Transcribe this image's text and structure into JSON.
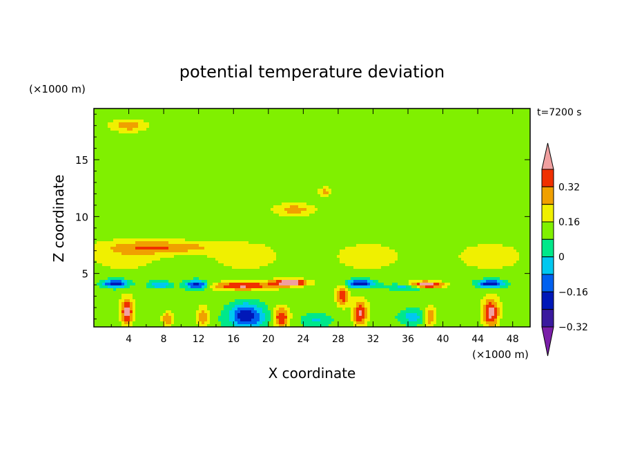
{
  "chart_data": {
    "type": "heatmap",
    "title": "potential temperature deviation",
    "xlabel": "X coordinate",
    "ylabel": "Z coordinate",
    "x_unit": "(×1000 m)",
    "y_unit": "(×1000 m)",
    "time_label": "t=7200 s",
    "xlim": [
      0,
      50
    ],
    "ylim": [
      0.3,
      19.5
    ],
    "x_ticks": [
      "4",
      "8",
      "12",
      "16",
      "20",
      "24",
      "28",
      "32",
      "36",
      "40",
      "44",
      "48"
    ],
    "y_ticks": [
      "5",
      "10",
      "15"
    ],
    "colorbar": {
      "levels": [
        -0.4,
        -0.32,
        -0.24,
        -0.16,
        -0.08,
        0,
        0.08,
        0.16,
        0.24,
        0.32,
        0.4
      ],
      "tick_labels": [
        "0.32",
        "0.16",
        "0",
        "−0.16",
        "−0.32"
      ],
      "colors": [
        "#7a1fa8",
        "#3a1a9e",
        "#0018b8",
        "#0060f0",
        "#00c8f0",
        "#00e88a",
        "#80f000",
        "#f0f000",
        "#f0a000",
        "#f03000",
        "#f0a0a0"
      ],
      "extend": "both"
    },
    "field": {
      "background": 0.02,
      "features": [
        {
          "type": "band",
          "z": 2.5,
          "value": 0.03
        },
        {
          "type": "band",
          "z": 6.5,
          "value": 0.1
        },
        {
          "type": "blob",
          "x": 4,
          "z": 18,
          "w": 2.2,
          "h": 0.6,
          "value": 0.19
        },
        {
          "type": "blob",
          "x": 23,
          "z": 10.6,
          "w": 2.5,
          "h": 0.6,
          "value": 0.18
        },
        {
          "type": "blob",
          "x": 26.5,
          "z": 12.2,
          "w": 0.8,
          "h": 0.4,
          "value": 0.17
        },
        {
          "type": "blob",
          "x": 8,
          "z": 7.3,
          "w": 6,
          "h": 0.6,
          "value": 0.2
        },
        {
          "type": "blob",
          "x": 2.5,
          "z": 4.1,
          "w": 1.4,
          "h": 0.35,
          "value": -0.36
        },
        {
          "type": "blob",
          "x": 11.8,
          "z": 4.0,
          "w": 1.3,
          "h": 0.35,
          "value": -0.36
        },
        {
          "type": "blob",
          "x": 30.5,
          "z": 4.1,
          "w": 1.6,
          "h": 0.35,
          "value": -0.36
        },
        {
          "type": "blob",
          "x": 45.5,
          "z": 4.1,
          "w": 1.5,
          "h": 0.35,
          "value": -0.36
        },
        {
          "type": "blob",
          "x": 7.5,
          "z": 4.0,
          "w": 1.2,
          "h": 0.3,
          "value": -0.2
        },
        {
          "type": "blob",
          "x": 36,
          "z": 3.8,
          "w": 2.0,
          "h": 0.3,
          "value": -0.2
        },
        {
          "type": "blob",
          "x": 17.5,
          "z": 1.3,
          "w": 2.0,
          "h": 1.1,
          "value": -0.34
        },
        {
          "type": "blob",
          "x": 22.5,
          "z": 4.2,
          "w": 2.0,
          "h": 0.3,
          "value": 0.42
        },
        {
          "type": "blob",
          "x": 17,
          "z": 3.9,
          "w": 4.0,
          "h": 0.35,
          "value": 0.3
        },
        {
          "type": "blob",
          "x": 38,
          "z": 4.0,
          "w": 2.0,
          "h": 0.3,
          "value": 0.42
        },
        {
          "type": "blob",
          "x": 3.8,
          "z": 1.6,
          "w": 0.7,
          "h": 1.2,
          "value": 0.32
        },
        {
          "type": "blob",
          "x": 8.5,
          "z": 1.0,
          "w": 0.7,
          "h": 0.6,
          "value": 0.22
        },
        {
          "type": "blob",
          "x": 12.5,
          "z": 1.2,
          "w": 0.7,
          "h": 0.9,
          "value": 0.2
        },
        {
          "type": "blob",
          "x": 21.5,
          "z": 1.1,
          "w": 0.9,
          "h": 0.9,
          "value": 0.3
        },
        {
          "type": "blob",
          "x": 28.5,
          "z": 3.1,
          "w": 0.7,
          "h": 0.9,
          "value": 0.28
        },
        {
          "type": "blob",
          "x": 30.5,
          "z": 1.4,
          "w": 0.8,
          "h": 1.1,
          "value": 0.3
        },
        {
          "type": "blob",
          "x": 38.5,
          "z": 1.2,
          "w": 0.7,
          "h": 0.9,
          "value": 0.22
        },
        {
          "type": "blob",
          "x": 45.5,
          "z": 1.5,
          "w": 0.9,
          "h": 1.2,
          "value": 0.33
        },
        {
          "type": "blob",
          "x": 36.5,
          "z": 1.2,
          "w": 1.5,
          "h": 0.6,
          "value": -0.15
        },
        {
          "type": "blob",
          "x": 25.5,
          "z": 0.9,
          "w": 1.5,
          "h": 0.5,
          "value": -0.12
        }
      ]
    }
  }
}
